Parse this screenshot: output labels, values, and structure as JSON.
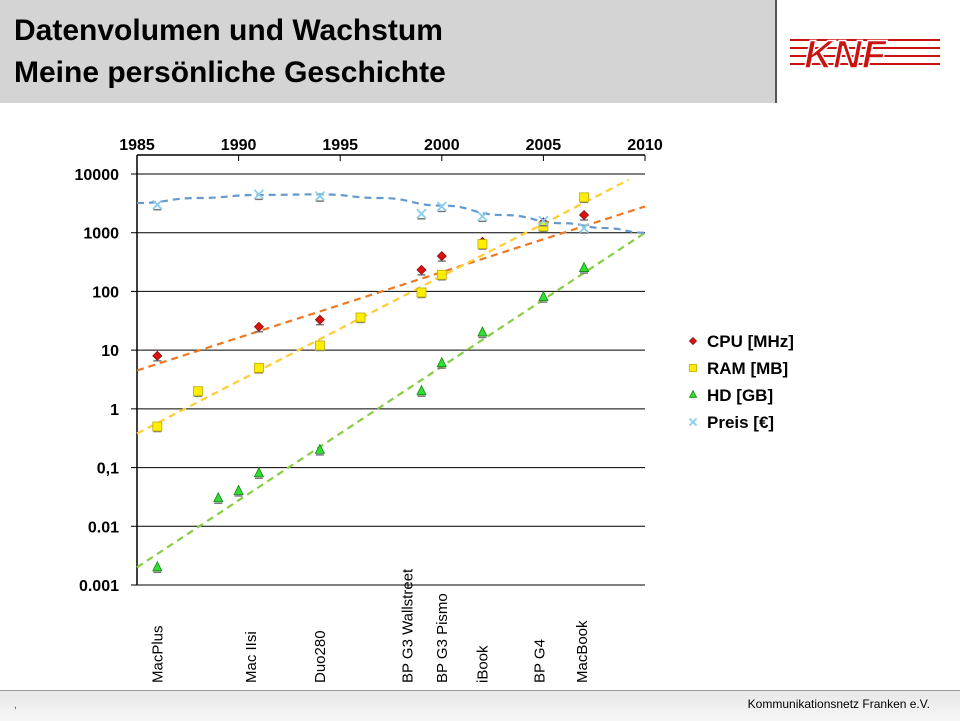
{
  "slide": {
    "title_line1": "Datenvolumen und Wachstum",
    "title_line2": "Meine persönliche Geschichte",
    "footer": "Kommunikationsnetz Franken e.V.",
    "footer_mark": ",",
    "logo_text": "KNF"
  },
  "chart_data": {
    "type": "scatter",
    "title": "",
    "xlabel": "",
    "ylabel": "",
    "x_scale": "linear",
    "y_scale": "log",
    "xlim": [
      1985,
      2010
    ],
    "ylim": [
      0.001,
      10000
    ],
    "x_ticks": [
      "1985",
      "1990",
      "1995",
      "2000",
      "2005",
      "2010"
    ],
    "x_tick_values": [
      1985,
      1990,
      1995,
      2000,
      2005,
      2010
    ],
    "x_axis_position": "top",
    "y_ticks": [
      "10000",
      "1000",
      "100",
      "10",
      "1",
      "0,1",
      "0.01",
      "0.001"
    ],
    "y_tick_values": [
      10000,
      1000,
      100,
      10,
      1,
      0.1,
      0.01,
      0.001
    ],
    "grid": "horizontal",
    "legend_position": "right",
    "series": [
      {
        "name": "CPU [MHz]",
        "marker": "diamond",
        "color": "#dd1111",
        "points": [
          [
            1986,
            8
          ],
          [
            1991,
            25
          ],
          [
            1994,
            33
          ],
          [
            1999,
            233
          ],
          [
            2000,
            400
          ],
          [
            2002,
            700
          ],
          [
            2005,
            1500
          ],
          [
            2007,
            2000
          ]
        ],
        "trend": {
          "type": "exponential",
          "color": "#ee7722",
          "from": [
            1985,
            4.5
          ],
          "to": [
            2010,
            2800
          ]
        }
      },
      {
        "name": "RAM [MB]",
        "marker": "square",
        "color": "#ffee00",
        "points": [
          [
            1986,
            0.5
          ],
          [
            1988,
            2
          ],
          [
            1991,
            5
          ],
          [
            1994,
            12
          ],
          [
            1996,
            36
          ],
          [
            1999,
            96
          ],
          [
            2000,
            192
          ],
          [
            2002,
            640
          ],
          [
            2005,
            1280
          ],
          [
            2007,
            4000
          ]
        ],
        "trend": {
          "type": "exponential",
          "color": "#ffcc33",
          "from": [
            1985,
            0.38
          ],
          "to": [
            2009.2,
            8000
          ]
        }
      },
      {
        "name": "HD [GB]",
        "marker": "triangle",
        "color": "#33dd33",
        "points": [
          [
            1986,
            0.002
          ],
          [
            1989,
            0.03
          ],
          [
            1990,
            0.04
          ],
          [
            1991,
            0.08
          ],
          [
            1994,
            0.2
          ],
          [
            1999,
            2
          ],
          [
            2000,
            6
          ],
          [
            2002,
            20
          ],
          [
            2005,
            80
          ],
          [
            2007,
            250
          ]
        ],
        "trend": {
          "type": "exponential",
          "color": "#88cc44",
          "from": [
            1985,
            0.002
          ],
          "to": [
            2010,
            1000
          ]
        }
      },
      {
        "name": "Preis [€]",
        "marker": "x",
        "color": "#88ccee",
        "points": [
          [
            1986,
            3000
          ],
          [
            1991,
            4500
          ],
          [
            1994,
            4200
          ],
          [
            1999,
            2100
          ],
          [
            2000,
            2800
          ],
          [
            2002,
            1900
          ],
          [
            2005,
            1600
          ],
          [
            2007,
            1200
          ]
        ],
        "trend": {
          "type": "polynomial",
          "color": "#6699cc",
          "points": [
            [
              1985,
              3200
            ],
            [
              1988,
              3900
            ],
            [
              1991,
              4400
            ],
            [
              1994,
              4500
            ],
            [
              1997,
              3900
            ],
            [
              2000,
              2900
            ],
            [
              2003,
              2000
            ],
            [
              2006,
              1450
            ],
            [
              2008,
              1200
            ],
            [
              2010,
              1000
            ]
          ]
        }
      }
    ],
    "machines": [
      {
        "label": "MacPlus",
        "x": 1986
      },
      {
        "label": "Mac IIsi",
        "x": 1990.6
      },
      {
        "label": "Duo280",
        "x": 1994
      },
      {
        "label": "BP G3 Wallstreet",
        "x": 1998.3
      },
      {
        "label": "BP G3 Pismo",
        "x": 2000
      },
      {
        "label": "iBook",
        "x": 2002
      },
      {
        "label": "BP G4",
        "x": 2004.8
      },
      {
        "label": "MacBook",
        "x": 2006.9
      }
    ]
  }
}
